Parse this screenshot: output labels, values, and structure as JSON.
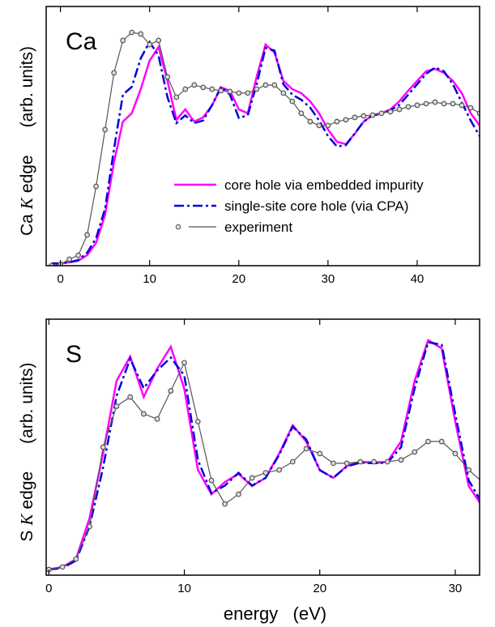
{
  "chart_data": [
    {
      "type": "line",
      "title": "Ca",
      "ylabel_prefix": "Ca",
      "ylabel_symbol": "K",
      "ylabel_suffix": "edge",
      "ylabel_units": "(arb. units)",
      "xlim": [
        -1.6,
        47
      ],
      "ylim": [
        0,
        100
      ],
      "xticks": [
        0,
        10,
        20,
        30,
        40
      ],
      "legend": "center-right",
      "x": [
        -1,
        0,
        1,
        2,
        3,
        4,
        5,
        6,
        7,
        8,
        9,
        10,
        11,
        12,
        13,
        14,
        15,
        16,
        17,
        18,
        19,
        20,
        21,
        22,
        23,
        24,
        25,
        26,
        27,
        28,
        29,
        30,
        31,
        32,
        33,
        34,
        35,
        36,
        37,
        38,
        39,
        40,
        41,
        42,
        43,
        44,
        45,
        46,
        47
      ],
      "series": [
        {
          "name": "core hole via embedded impurity",
          "color": "#ff00ff",
          "linestyle": "solid",
          "values": [
            0.9,
            0.9,
            1.3,
            1.9,
            4.1,
            8.8,
            19.7,
            40,
            55.6,
            58.8,
            68.1,
            79.1,
            84.4,
            71.3,
            56.3,
            60.3,
            55.6,
            57.2,
            61.9,
            68.8,
            67.5,
            60.3,
            58.8,
            72.8,
            85.3,
            82.2,
            71.3,
            68.1,
            66.6,
            63.4,
            58.8,
            52.5,
            47.8,
            46.9,
            50.9,
            55.6,
            58.1,
            58.8,
            60.3,
            63.4,
            67.5,
            71.3,
            75,
            75.9,
            74.4,
            71.3,
            66.6,
            58.8,
            54.1
          ]
        },
        {
          "name": "single-site core hole (via CPA)",
          "color": "#0000dd",
          "linestyle": "dashdot",
          "values": [
            0.9,
            0.9,
            1.3,
            2.2,
            5,
            10.6,
            22,
            45,
            66,
            69,
            80,
            86.3,
            81,
            65,
            55,
            58,
            55,
            56,
            62,
            69,
            66,
            57,
            58,
            70,
            84,
            83,
            70,
            66,
            64,
            61,
            56,
            50,
            46,
            46.5,
            51,
            55.6,
            58,
            58.5,
            60,
            62,
            66,
            70,
            74,
            76.5,
            75,
            70,
            63,
            56,
            50
          ]
        },
        {
          "name": "experiment",
          "color": "#555555",
          "linestyle": "solid",
          "marker": "o",
          "values": [
            0,
            0.5,
            2.5,
            4,
            11.9,
            30.6,
            52.5,
            74.4,
            86.9,
            90,
            89.4,
            85.3,
            86.9,
            72.8,
            65,
            68.1,
            69.7,
            68.8,
            68.1,
            67.5,
            67.2,
            66.6,
            66.6,
            68.1,
            69.7,
            69.7,
            66.6,
            63.4,
            58.8,
            55.6,
            54.1,
            54.1,
            55.6,
            56.3,
            57.2,
            57.8,
            58.1,
            58.8,
            59.4,
            60.3,
            61.3,
            61.9,
            62.5,
            63.1,
            62.5,
            62.5,
            61.9,
            60.9,
            58.8
          ]
        }
      ]
    },
    {
      "type": "line",
      "title": "S",
      "ylabel_prefix": "S",
      "ylabel_symbol": "K",
      "ylabel_suffix": "edge",
      "ylabel_units": "(arb. units)",
      "xlabel": "energy   (eV)",
      "xlim": [
        -0.2,
        31.8
      ],
      "ylim": [
        0,
        100
      ],
      "xticks": [
        0,
        10,
        20,
        30
      ],
      "x": [
        0,
        1,
        2,
        3,
        4,
        5,
        6,
        7,
        8,
        9,
        10,
        11,
        12,
        13,
        14,
        15,
        16,
        17,
        18,
        19,
        20,
        21,
        22,
        23,
        24,
        25,
        26,
        27,
        28,
        29,
        30,
        31,
        32
      ],
      "series": [
        {
          "color": "#ff00ff",
          "linestyle": "solid",
          "values": [
            2.2,
            3.2,
            6.3,
            22.2,
            47.5,
            75.9,
            85.4,
            69.6,
            80.7,
            89.2,
            72.8,
            41.1,
            31.6,
            36.4,
            39.6,
            34.8,
            38,
            47.5,
            58.5,
            52.2,
            41.1,
            38,
            42.7,
            44.3,
            43.7,
            44.3,
            52.2,
            75.9,
            91.8,
            88.6,
            60.1,
            34.8,
            26.9
          ]
        },
        {
          "color": "#0000dd",
          "linestyle": "dashdot",
          "values": [
            2.2,
            2.8,
            5.7,
            19,
            42,
            70,
            84.5,
            73,
            80,
            85,
            78,
            45,
            32,
            35,
            40,
            35,
            38,
            47,
            58,
            53,
            41,
            38,
            42.5,
            44,
            43.7,
            44,
            50,
            73,
            91,
            90,
            63,
            37,
            28
          ]
        },
        {
          "color": "#555555",
          "linestyle": "solid",
          "marker": "o",
          "values": [
            2.2,
            3.2,
            6.3,
            19,
            50,
            66,
            69.6,
            63,
            61,
            72,
            83,
            60,
            37,
            27.8,
            31.6,
            38,
            40,
            41.1,
            44.3,
            49.4,
            47.5,
            43.7,
            43.7,
            44.3,
            44.3,
            44.3,
            45,
            48.1,
            52.2,
            52.2,
            47.5,
            41.1,
            36.4
          ]
        }
      ]
    }
  ]
}
